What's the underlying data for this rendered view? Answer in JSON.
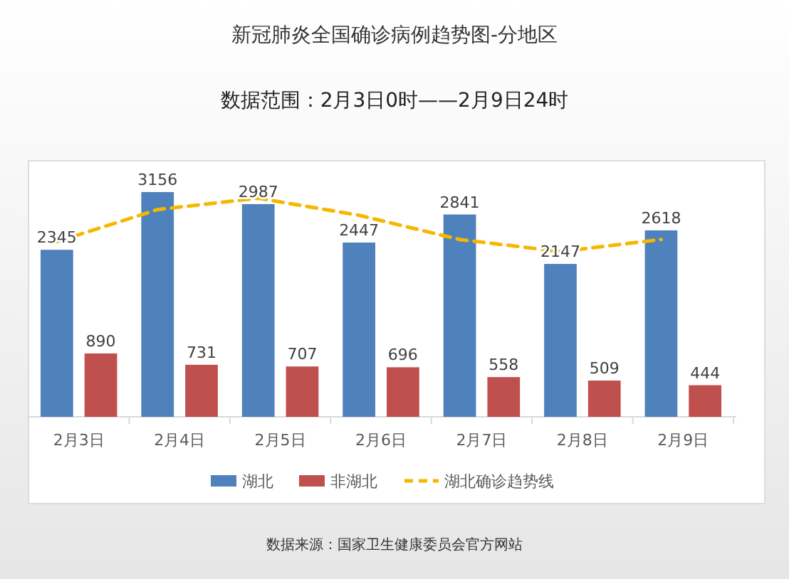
{
  "chart_data": {
    "type": "bar",
    "title": "新冠肺炎全国确诊病例趋势图-分地区",
    "subtitle": "数据范围：2月3日0时——2月9日24时",
    "categories": [
      "2月3日",
      "2月4日",
      "2月5日",
      "2月6日",
      "2月7日",
      "2月8日",
      "2月9日"
    ],
    "series": [
      {
        "name": "湖北",
        "color": "#4f81bd",
        "values": [
          2345,
          3156,
          2987,
          2447,
          2841,
          2147,
          2618
        ],
        "value_labels": [
          "2345",
          "3156",
          "2987",
          "2447",
          "2841",
          "2147",
          "2618"
        ]
      },
      {
        "name": "非湖北",
        "color": "#c0504d",
        "values": [
          890,
          731,
          707,
          696,
          558,
          509,
          444
        ],
        "value_labels": [
          "890",
          "731",
          "707",
          "696",
          "558",
          "509",
          "444"
        ]
      },
      {
        "name": "湖北确诊趋势线",
        "type": "line",
        "color": "#f5b800",
        "line_style": "dashed",
        "values": [
          2460,
          2910,
          3070,
          2830,
          2490,
          2320,
          2490
        ]
      }
    ],
    "legend": "bottom",
    "annotations": [
      "数据来源：国家卫生健康委员会官方网站"
    ]
  }
}
